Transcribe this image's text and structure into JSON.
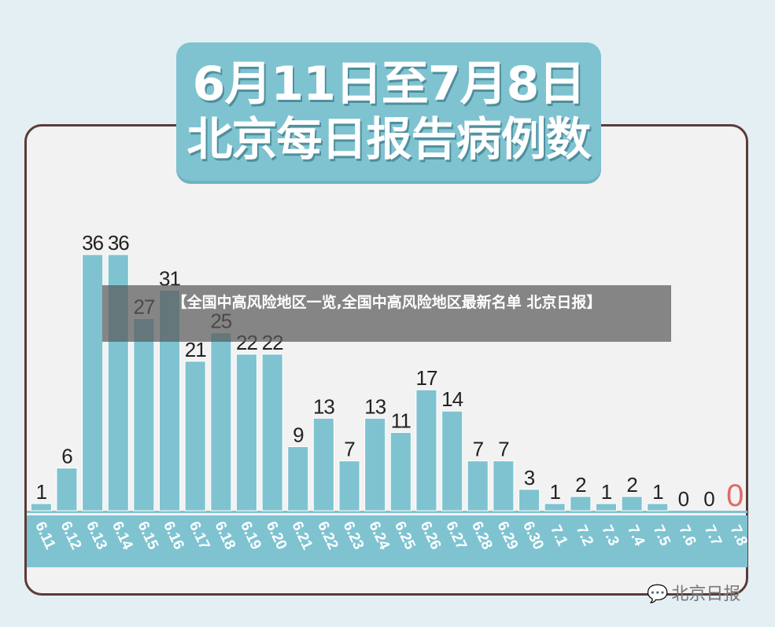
{
  "title": {
    "line1": "6月11日至7月8日",
    "line2": "北京每日报告病例数"
  },
  "overlay_text": "【全国中高风险地区一览,全国中高风险地区最新名单 北京日报】",
  "watermark": {
    "icon": "wechat-icon",
    "text": "北京日报"
  },
  "colors": {
    "bar": "#7fc3d1",
    "axis_band": "#7fc3d1",
    "highlight_zero": "#e06a6a",
    "value_text": "#222222",
    "card_border": "#5b3b38"
  },
  "chart_data": {
    "type": "bar",
    "title": "6月11日至7月8日 北京每日报告病例数",
    "categories": [
      "6.11",
      "6.12",
      "6.13",
      "6.14",
      "6.15",
      "6.16",
      "6.17",
      "6.18",
      "6.19",
      "6.20",
      "6.21",
      "6.22",
      "6.23",
      "6.24",
      "6.25",
      "6.26",
      "6.27",
      "6.28",
      "6.29",
      "6.30",
      "7.1",
      "7.2",
      "7.3",
      "7.4",
      "7.5",
      "7.6",
      "7.7",
      "7.8"
    ],
    "values": [
      1,
      6,
      36,
      36,
      27,
      31,
      21,
      25,
      22,
      22,
      9,
      13,
      7,
      13,
      11,
      17,
      14,
      7,
      7,
      3,
      1,
      2,
      1,
      2,
      1,
      0,
      0,
      0
    ],
    "value_labels": [
      "1",
      "6",
      "36",
      "36",
      "27",
      "31",
      "21",
      "25",
      "22",
      "22",
      "9",
      "13",
      "7",
      "13",
      "11",
      "17",
      "14",
      "7",
      "7",
      "3",
      "1",
      "2",
      "1",
      "2",
      "1",
      "0",
      "0",
      "0"
    ],
    "highlight_index": 27,
    "ylim": [
      0,
      36
    ],
    "grid": false,
    "legend": "none"
  }
}
